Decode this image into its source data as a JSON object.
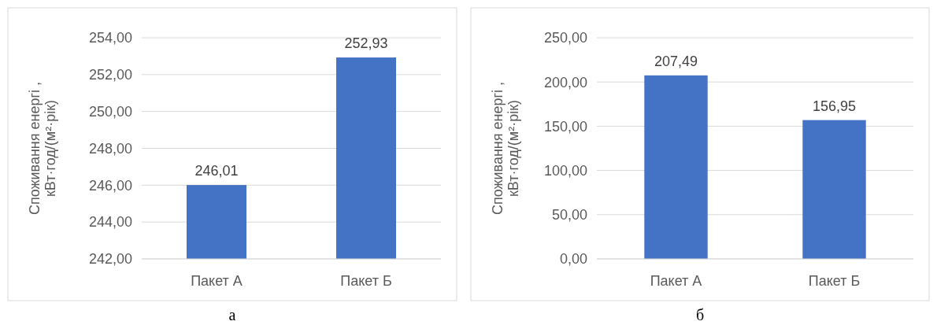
{
  "chart_data": [
    {
      "type": "bar",
      "categories": [
        "Пакет А",
        "Пакет Б"
      ],
      "values": [
        246.01,
        252.93
      ],
      "value_labels": [
        "246,01",
        "252,93"
      ],
      "color": "#4472c4",
      "ylabel": "Споживання енергі ,\nкВт·год/(м²·рік)",
      "ylim": [
        242,
        254
      ],
      "yticks": [
        {
          "value": 242,
          "label": "242,00"
        },
        {
          "value": 244,
          "label": "244,00"
        },
        {
          "value": 246,
          "label": "246,00"
        },
        {
          "value": 248,
          "label": "248,00"
        },
        {
          "value": 250,
          "label": "250,00"
        },
        {
          "value": 252,
          "label": "252,00"
        },
        {
          "value": 254,
          "label": "254,00"
        }
      ],
      "grid": "y",
      "annotations": [
        "а"
      ]
    },
    {
      "type": "bar",
      "categories": [
        "Пакет А",
        "Пакет Б"
      ],
      "values": [
        207.49,
        156.95
      ],
      "value_labels": [
        "207,49",
        "156,95"
      ],
      "color": "#4472c4",
      "ylabel": "Споживання енергі ,\nкВт·год/(м²·рік)",
      "ylim": [
        0,
        250
      ],
      "yticks": [
        {
          "value": 0,
          "label": "0,00"
        },
        {
          "value": 50,
          "label": "50,00"
        },
        {
          "value": 100,
          "label": "100,00"
        },
        {
          "value": 150,
          "label": "150,00"
        },
        {
          "value": 200,
          "label": "200,00"
        },
        {
          "value": 250,
          "label": "250,00"
        }
      ],
      "grid": "y",
      "annotations": [
        "б"
      ]
    }
  ]
}
